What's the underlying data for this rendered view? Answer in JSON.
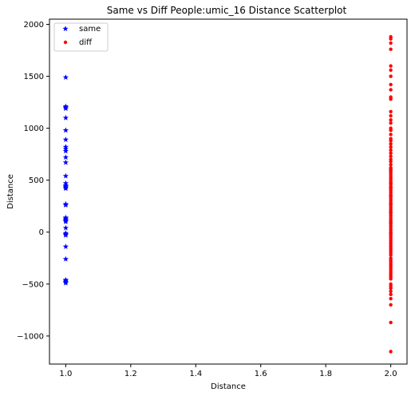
{
  "chart_data": {
    "type": "scatter",
    "title": "Same vs Diff People:umic_16 Distance Scatterplot",
    "xlabel": "Distance",
    "ylabel": "Distance",
    "xlim": [
      0.95,
      2.05
    ],
    "ylim": [
      -1270,
      2050
    ],
    "xticks": [
      "1.0",
      "1.2",
      "1.4",
      "1.6",
      "1.8",
      "2.0"
    ],
    "yticks": [
      "-1000",
      "-500",
      "0",
      "500",
      "1000",
      "1500",
      "2000"
    ],
    "grid": false,
    "legend_position": "upper-left",
    "series": [
      {
        "name": "same",
        "marker": "star",
        "color": "#0000ff",
        "x": [
          1,
          1,
          1,
          1,
          1,
          1,
          1,
          1,
          1,
          1,
          1,
          1,
          1,
          1,
          1,
          1,
          1,
          1,
          1,
          1,
          1,
          1,
          1,
          1,
          1,
          1,
          1,
          1,
          1,
          1,
          1,
          1,
          1,
          1,
          1
        ],
        "y": [
          1490,
          1210,
          1200,
          1190,
          1100,
          980,
          890,
          820,
          800,
          780,
          720,
          670,
          540,
          470,
          450,
          440,
          430,
          420,
          270,
          260,
          140,
          120,
          100,
          40,
          -10,
          -20,
          -30,
          -140,
          -260,
          -460,
          -470,
          -480,
          -490,
          110,
          130
        ]
      },
      {
        "name": "diff",
        "marker": "circle",
        "color": "#ff0000",
        "x": [
          2,
          2,
          2,
          2,
          2,
          2,
          2,
          2,
          2,
          2,
          2,
          2,
          2,
          2,
          2,
          2,
          2,
          2,
          2,
          2,
          2,
          2,
          2,
          2,
          2,
          2,
          2,
          2,
          2,
          2,
          2,
          2,
          2,
          2,
          2,
          2,
          2,
          2,
          2,
          2,
          2,
          2,
          2,
          2,
          2,
          2,
          2,
          2,
          2,
          2,
          2,
          2,
          2,
          2,
          2,
          2,
          2,
          2,
          2,
          2,
          2,
          2,
          2,
          2,
          2,
          2,
          2,
          2,
          2,
          2,
          2,
          2,
          2,
          2,
          2,
          2,
          2,
          2,
          2,
          2,
          2,
          2,
          2,
          2,
          2,
          2,
          2,
          2,
          2,
          2,
          2,
          2,
          2,
          2,
          2,
          2,
          2,
          2,
          2,
          2
        ],
        "y": [
          1880,
          1860,
          1820,
          1760,
          1600,
          1560,
          1500,
          1420,
          1370,
          1300,
          1280,
          1160,
          1120,
          1080,
          1050,
          1000,
          980,
          940,
          900,
          880,
          850,
          820,
          790,
          760,
          730,
          700,
          680,
          650,
          620,
          600,
          580,
          560,
          540,
          520,
          500,
          480,
          460,
          440,
          420,
          400,
          380,
          360,
          340,
          320,
          300,
          280,
          260,
          240,
          220,
          200,
          180,
          160,
          140,
          120,
          100,
          80,
          60,
          40,
          20,
          0,
          -20,
          -40,
          -60,
          -80,
          -100,
          -120,
          -140,
          -160,
          -180,
          -200,
          -220,
          -250,
          -270,
          -290,
          -310,
          -330,
          -350,
          -370,
          -390,
          -410,
          -430,
          -450,
          -500,
          -520,
          -540,
          -570,
          -600,
          -640,
          -700,
          -870,
          -1150,
          610,
          590,
          470,
          430,
          350,
          270,
          190,
          90,
          -10
        ]
      }
    ]
  }
}
